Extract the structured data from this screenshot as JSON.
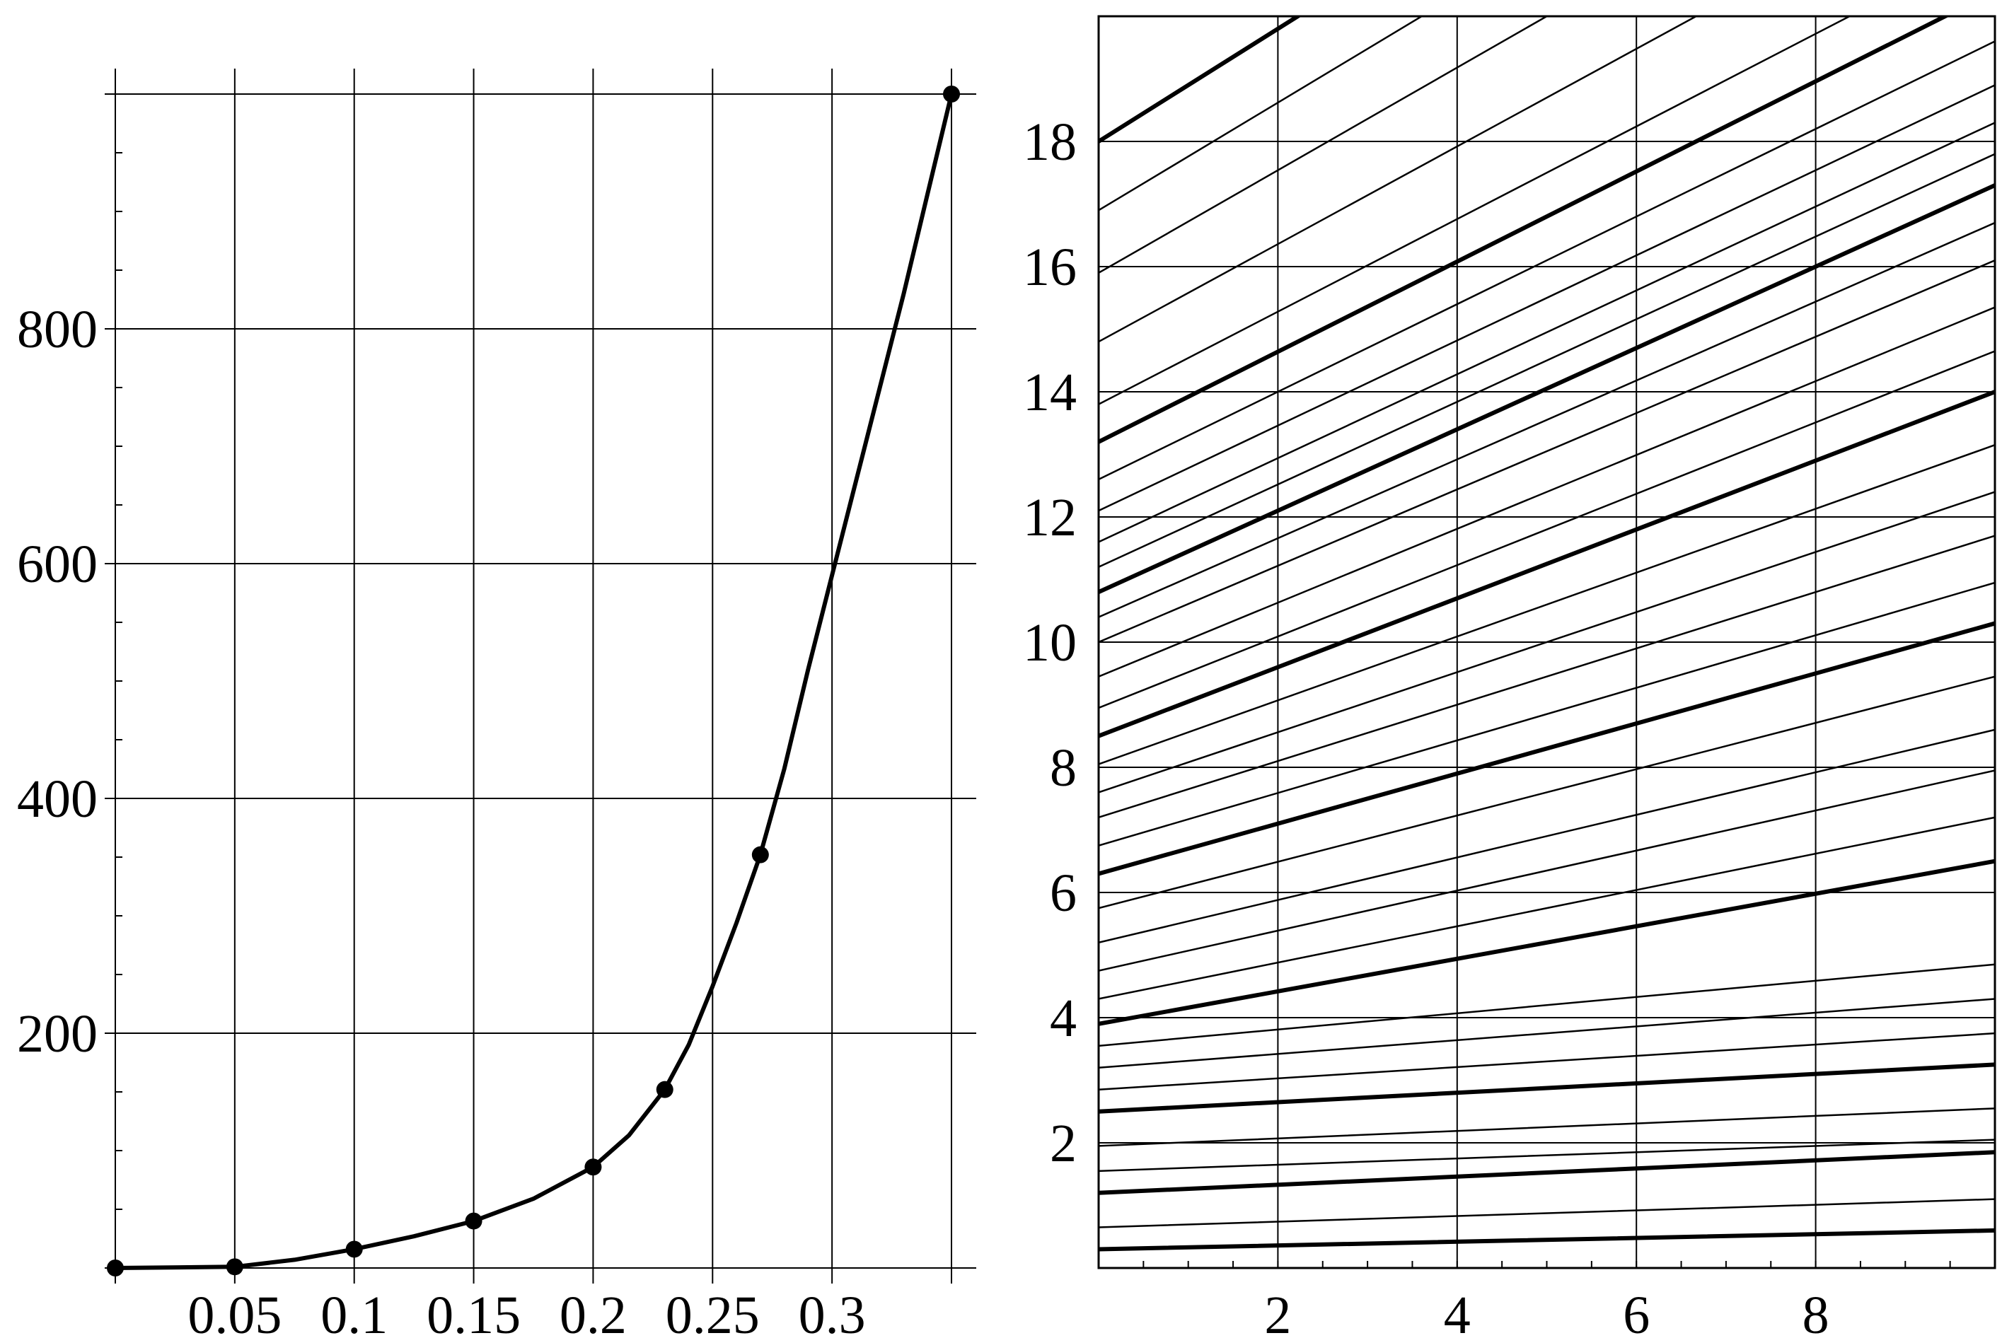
{
  "chart_data": [
    {
      "type": "line",
      "title": "",
      "xlabel": "",
      "ylabel": "",
      "xlim": [
        0,
        0.35
      ],
      "ylim": [
        0,
        1000
      ],
      "grid": true,
      "xticks": [
        0.05,
        0.1,
        0.15,
        0.2,
        0.25,
        0.3
      ],
      "xtick_labels": [
        "0.05",
        "0.1",
        "0.15",
        "0.2",
        "0.25",
        "0.3"
      ],
      "yticks": [
        200,
        400,
        600,
        800
      ],
      "ytick_labels": [
        "200",
        "400",
        "600",
        "800"
      ],
      "extra_grid_x": [
        0,
        0.35
      ],
      "extra_grid_y": [
        1000
      ],
      "series": [
        {
          "markers": true,
          "points": [
            [
              0,
              0
            ],
            [
              0.05,
              1
            ],
            [
              0.1,
              16
            ],
            [
              0.15,
              40
            ],
            [
              0.2,
              86
            ],
            [
              0.23,
              152
            ],
            [
              0.27,
              352
            ],
            [
              0.35,
              1000
            ]
          ],
          "curve": [
            [
              0,
              0
            ],
            [
              0.05,
              1
            ],
            [
              0.075,
              7
            ],
            [
              0.1,
              16
            ],
            [
              0.125,
              27
            ],
            [
              0.15,
              40
            ],
            [
              0.175,
              59
            ],
            [
              0.2,
              86
            ],
            [
              0.215,
              113
            ],
            [
              0.23,
              152
            ],
            [
              0.24,
              190
            ],
            [
              0.25,
              240
            ],
            [
              0.26,
              294
            ],
            [
              0.27,
              352
            ],
            [
              0.28,
              425
            ],
            [
              0.29,
              510
            ],
            [
              0.3,
              590
            ],
            [
              0.31,
              670
            ],
            [
              0.32,
              750
            ],
            [
              0.33,
              830
            ],
            [
              0.34,
              915
            ],
            [
              0.35,
              1000
            ]
          ]
        }
      ]
    },
    {
      "type": "line",
      "title": "",
      "xlabel": "",
      "ylabel": "",
      "xlim": [
        0,
        10
      ],
      "ylim": [
        0,
        20
      ],
      "grid": true,
      "xticks": [
        2,
        4,
        6,
        8
      ],
      "xtick_labels": [
        "2",
        "4",
        "6",
        "8"
      ],
      "yticks": [
        2,
        4,
        6,
        8,
        10,
        12,
        14,
        16,
        18
      ],
      "ytick_labels": [
        "2",
        "4",
        "6",
        "8",
        "10",
        "12",
        "14",
        "16",
        "18"
      ],
      "note_lines": "family of straight lines y = y0 + slope*x",
      "bold_lines": [
        {
          "y0": 0.3,
          "slope": 0.03
        },
        {
          "y0": 1.2,
          "slope": 0.065
        },
        {
          "y0": 2.5,
          "slope": 0.075
        },
        {
          "y0": 3.9,
          "slope": 0.26
        },
        {
          "y0": 6.3,
          "slope": 0.4
        },
        {
          "y0": 8.5,
          "slope": 0.55
        },
        {
          "y0": 10.8,
          "slope": 0.65
        },
        {
          "y0": 13.2,
          "slope": 0.72
        },
        {
          "y0": 18.0,
          "slope": 0.9
        }
      ],
      "thin_lines": [
        {
          "y0": 0.65,
          "slope": 0.045
        },
        {
          "y0": 1.55,
          "slope": 0.05
        },
        {
          "y0": 1.95,
          "slope": 0.06
        },
        {
          "y0": 2.85,
          "slope": 0.09
        },
        {
          "y0": 3.2,
          "slope": 0.11
        },
        {
          "y0": 3.55,
          "slope": 0.13
        },
        {
          "y0": 4.3,
          "slope": 0.29
        },
        {
          "y0": 4.75,
          "slope": 0.32
        },
        {
          "y0": 5.2,
          "slope": 0.34
        },
        {
          "y0": 5.75,
          "slope": 0.37
        },
        {
          "y0": 6.75,
          "slope": 0.42
        },
        {
          "y0": 7.2,
          "slope": 0.45
        },
        {
          "y0": 7.6,
          "slope": 0.48
        },
        {
          "y0": 8.05,
          "slope": 0.51
        },
        {
          "y0": 8.95,
          "slope": 0.57
        },
        {
          "y0": 9.45,
          "slope": 0.59
        },
        {
          "y0": 10.0,
          "slope": 0.61
        },
        {
          "y0": 10.4,
          "slope": 0.63
        },
        {
          "y0": 11.2,
          "slope": 0.66
        },
        {
          "y0": 11.6,
          "slope": 0.67
        },
        {
          "y0": 12.1,
          "slope": 0.68
        },
        {
          "y0": 12.6,
          "slope": 0.7
        },
        {
          "y0": 13.8,
          "slope": 0.74
        },
        {
          "y0": 14.8,
          "slope": 0.78
        },
        {
          "y0": 15.9,
          "slope": 0.82
        },
        {
          "y0": 16.9,
          "slope": 0.86
        }
      ]
    }
  ]
}
